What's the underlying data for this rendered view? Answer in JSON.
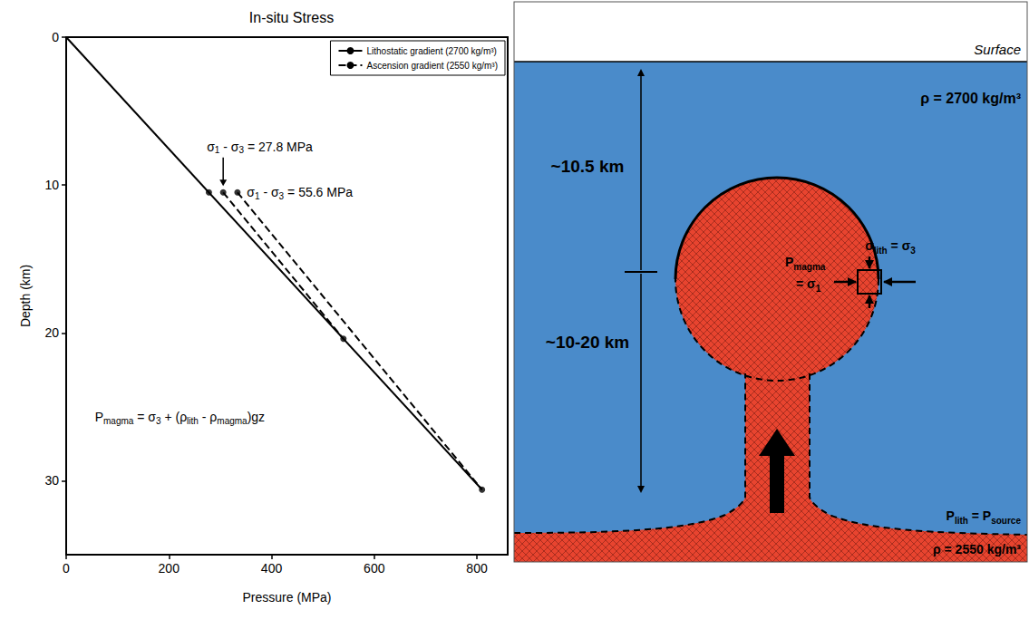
{
  "chart_data": {
    "type": "line",
    "title": "In-situ Stress",
    "x_label": "Pressure (MPa)",
    "y_label": "Depth (km)",
    "xlim": [
      0,
      860
    ],
    "xticks": [
      0,
      200,
      400,
      600,
      800
    ],
    "ylim": [
      35,
      0
    ],
    "yticks": [
      0,
      10,
      20,
      30
    ],
    "grid": false,
    "legend": "top-right",
    "series": [
      {
        "name": "Lithostatic gradient (2700 kg/m³)",
        "color": "#000000",
        "line_style": "solid",
        "x": [
          0,
          810
        ],
        "values": [
          0,
          30.6
        ]
      },
      {
        "name": "Ascension gradient (2550 kg/m³)",
        "color": "#000000",
        "line_style": "dashed",
        "x": [
          305.8,
          540,
          null,
          333.6,
          810
        ],
        "values": [
          10.5,
          20.4,
          null,
          10.5,
          30.6
        ]
      },
      {
        "type": "scatter",
        "color": "#000000",
        "marker": "circle",
        "x": [
          278,
          305.8,
          333.6,
          540,
          810
        ],
        "values": [
          10.5,
          10.5,
          10.5,
          20.4,
          30.6
        ]
      }
    ],
    "annotations": [
      {
        "parts": [
          {
            "text": "σ"
          },
          {
            "text": "1",
            "sub": true
          },
          {
            "text": " - σ"
          },
          {
            "text": "3",
            "sub": true
          },
          {
            "text": " = 27.8 MPa"
          }
        ],
        "x": 274,
        "y": 7.4,
        "arrow_to": [
          305.8,
          10.5
        ]
      },
      {
        "parts": [
          {
            "text": "σ"
          },
          {
            "text": "1",
            "sub": true
          },
          {
            "text": " - σ"
          },
          {
            "text": "3",
            "sub": true
          },
          {
            "text": " = 55.6 MPa"
          }
        ],
        "x": 352,
        "y": 10.5
      },
      {
        "parts": [
          {
            "text": "P"
          },
          {
            "text": "magma",
            "sub": true
          },
          {
            "text": " = σ"
          },
          {
            "text": "3",
            "sub": true
          },
          {
            "text": " + (ρ"
          },
          {
            "text": "lith",
            "sub": true
          },
          {
            "text": " - ρ"
          },
          {
            "text": "magma",
            "sub": true
          },
          {
            "text": ")gz"
          }
        ],
        "x": 56,
        "y": 25.7
      }
    ]
  },
  "diagram": {
    "surface_label": "Surface",
    "crust_density": "ρ = 2700 kg/m³",
    "chamber_depth": "~10.5 km",
    "source_depth": "~10-20 km",
    "magma_pressure": [
      [
        {
          "text": "P"
        },
        {
          "text": "magma",
          "sub": true
        }
      ],
      [
        {
          "text": "= σ"
        },
        {
          "text": "1",
          "sub": true
        }
      ]
    ],
    "wall_stress": [
      [
        {
          "text": "σ"
        },
        {
          "text": "lith",
          "sub": true
        },
        {
          "text": " = σ"
        },
        {
          "text": "3",
          "sub": true
        }
      ]
    ],
    "source_pressure": [
      [
        {
          "text": "P"
        },
        {
          "text": "lith",
          "sub": true
        },
        {
          "text": " = P"
        },
        {
          "text": "source",
          "sub": true
        }
      ]
    ],
    "magma_density": "ρ = 2550 kg/m³"
  }
}
